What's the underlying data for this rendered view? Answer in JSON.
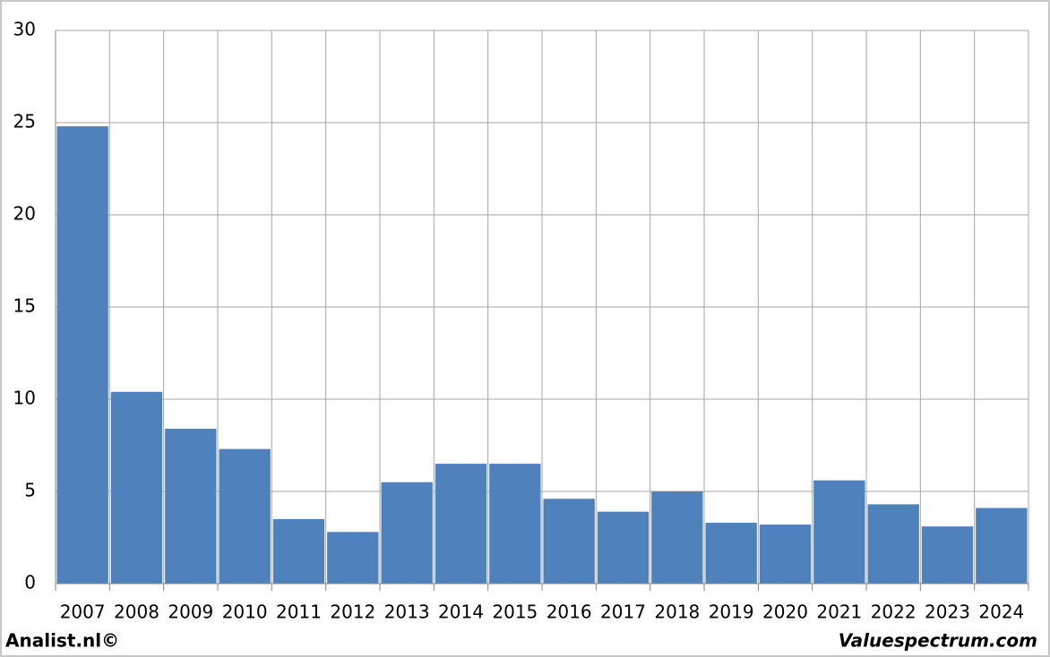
{
  "chart_data": {
    "type": "bar",
    "categories": [
      "2007",
      "2008",
      "2009",
      "2010",
      "2011",
      "2012",
      "2013",
      "2014",
      "2015",
      "2016",
      "2017",
      "2018",
      "2019",
      "2020",
      "2021",
      "2022",
      "2023",
      "2024"
    ],
    "values": [
      24.8,
      10.4,
      8.4,
      7.3,
      3.5,
      2.8,
      5.5,
      6.5,
      6.5,
      4.6,
      3.9,
      5.0,
      3.3,
      3.2,
      5.6,
      4.3,
      3.1,
      4.1
    ],
    "color": "#4f81bd",
    "ylim": [
      0,
      30
    ],
    "yticks": [
      0,
      5,
      10,
      15,
      20,
      25,
      30
    ],
    "grid": true
  },
  "footer": {
    "left": "Analist.nl©",
    "right": "Valuespectrum.com"
  }
}
